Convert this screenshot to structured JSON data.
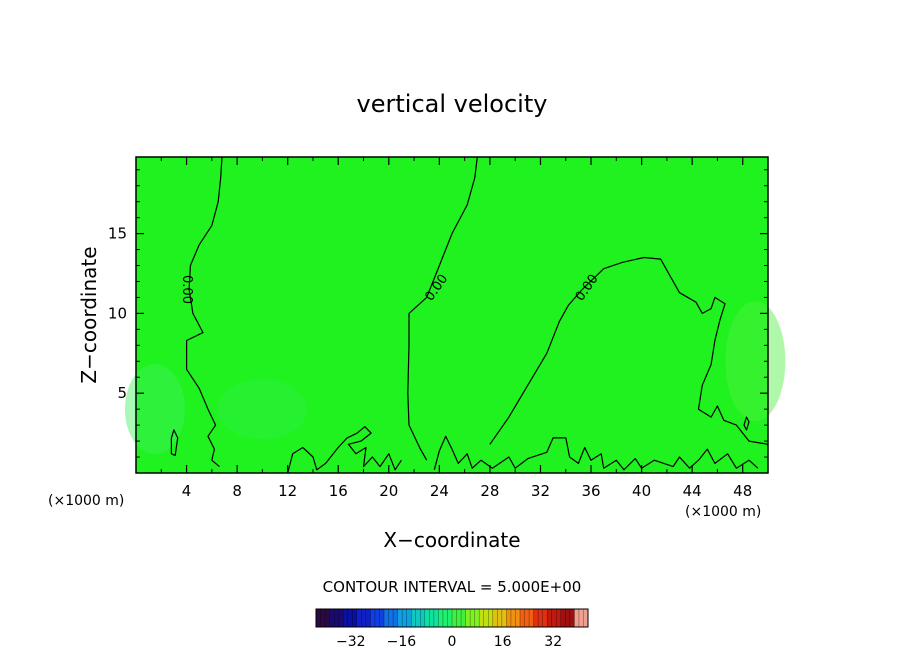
{
  "chart_data": {
    "type": "contour",
    "title": "vertical velocity",
    "xlabel": "X−coordinate",
    "ylabel": "Z−coordinate",
    "x_unit_left": "(×1000 m)",
    "x_unit_right": "(×1000 m)",
    "xlim": [
      0,
      50
    ],
    "ylim": [
      0,
      19.8
    ],
    "x_ticks": [
      4,
      8,
      12,
      16,
      20,
      24,
      28,
      32,
      36,
      40,
      44,
      48
    ],
    "x_tick_labels": [
      "4",
      "8",
      "12",
      "16",
      "20",
      "24",
      "28",
      "32",
      "36",
      "40",
      "44",
      "48"
    ],
    "y_ticks": [
      5,
      10,
      15
    ],
    "y_tick_labels": [
      "5",
      "10",
      "15"
    ],
    "field_color": "#1ff21f",
    "contour_label": "0.00",
    "contour_interval_text": "CONTOUR INTERVAL = 5.000E+00",
    "colorbar": {
      "range": [
        -43,
        43
      ],
      "ticks": [
        -32,
        -16,
        0,
        16,
        32
      ],
      "tick_labels": [
        "−32",
        "−16",
        "0",
        "16",
        "32"
      ],
      "colors": [
        "#2a0a40",
        "#1a0a70",
        "#0a10a0",
        "#1020c8",
        "#1040e0",
        "#1070e8",
        "#10a0e0",
        "#10c8c0",
        "#10e0a0",
        "#20f070",
        "#40f040",
        "#80f020",
        "#c0e010",
        "#e0c010",
        "#f09010",
        "#f06010",
        "#e03010",
        "#c01a10",
        "#a01010",
        "#f0a090"
      ]
    },
    "contours": [
      {
        "name": "contour-line-left",
        "label_x": 4.0,
        "label_y": 11.5,
        "points": [
          [
            6.8,
            19.8
          ],
          [
            6.7,
            18.5
          ],
          [
            6.5,
            17.0
          ],
          [
            6.0,
            15.5
          ],
          [
            5.0,
            14.3
          ],
          [
            4.3,
            13.0
          ],
          [
            4.2,
            11.5
          ],
          [
            4.5,
            10.0
          ],
          [
            5.3,
            8.8
          ],
          [
            4.0,
            8.3
          ],
          [
            4.0,
            6.5
          ],
          [
            5.0,
            5.3
          ],
          [
            5.7,
            4.0
          ],
          [
            6.3,
            3.0
          ],
          [
            5.7,
            2.3
          ],
          [
            6.2,
            1.5
          ],
          [
            6.0,
            0.8
          ],
          [
            6.6,
            0.4
          ]
        ]
      },
      {
        "name": "contour-line-middle",
        "label_x": 23.8,
        "label_y": 11.6,
        "points": [
          [
            27.0,
            19.8
          ],
          [
            26.8,
            18.5
          ],
          [
            26.2,
            16.8
          ],
          [
            25.0,
            15.0
          ],
          [
            24.0,
            13.0
          ],
          [
            23.0,
            11.0
          ],
          [
            21.6,
            10.0
          ],
          [
            21.6,
            8.0
          ],
          [
            21.5,
            5.0
          ],
          [
            21.6,
            3.0
          ],
          [
            22.5,
            1.5
          ],
          [
            23.0,
            0.8
          ]
        ]
      },
      {
        "name": "contour-line-right",
        "label_x": 35.7,
        "label_y": 11.6,
        "points": [
          [
            28.0,
            1.8
          ],
          [
            29.5,
            3.5
          ],
          [
            31.0,
            5.5
          ],
          [
            32.5,
            7.5
          ],
          [
            33.5,
            9.5
          ],
          [
            34.2,
            10.5
          ],
          [
            35.3,
            11.5
          ],
          [
            37.0,
            12.8
          ],
          [
            38.5,
            13.2
          ],
          [
            40.2,
            13.5
          ],
          [
            41.5,
            13.4
          ],
          [
            42.5,
            12.0
          ],
          [
            43.0,
            11.3
          ],
          [
            44.3,
            10.7
          ],
          [
            44.8,
            10.0
          ],
          [
            45.5,
            10.3
          ],
          [
            45.8,
            11.0
          ],
          [
            46.6,
            10.6
          ],
          [
            46.2,
            9.6
          ],
          [
            45.8,
            8.3
          ],
          [
            45.5,
            6.8
          ],
          [
            44.8,
            5.5
          ],
          [
            44.5,
            4.0
          ],
          [
            45.5,
            3.5
          ],
          [
            46.0,
            4.2
          ],
          [
            46.5,
            3.3
          ],
          [
            47.5,
            3.0
          ],
          [
            48.5,
            2.0
          ],
          [
            50.0,
            1.8
          ]
        ]
      },
      {
        "name": "contour-loop-small-left",
        "closed": true,
        "points": [
          [
            3.0,
            2.7
          ],
          [
            3.3,
            2.2
          ],
          [
            3.1,
            1.1
          ],
          [
            2.8,
            1.2
          ],
          [
            2.8,
            2.2
          ]
        ]
      },
      {
        "name": "contour-loop-small-right",
        "closed": true,
        "points": [
          [
            48.3,
            3.5
          ],
          [
            48.5,
            3.2
          ],
          [
            48.3,
            2.7
          ],
          [
            48.1,
            3.0
          ]
        ]
      },
      {
        "name": "contour-bottom-wiggles",
        "points": [
          [
            12.0,
            0.0
          ],
          [
            12.4,
            1.2
          ],
          [
            13.2,
            1.6
          ],
          [
            14.0,
            1.0
          ],
          [
            14.3,
            0.2
          ],
          [
            15.0,
            0.6
          ],
          [
            16.0,
            1.6
          ],
          [
            16.7,
            2.2
          ],
          [
            17.5,
            2.5
          ],
          [
            18.1,
            2.9
          ],
          [
            18.6,
            2.5
          ],
          [
            17.8,
            2.0
          ],
          [
            16.8,
            1.8
          ],
          [
            17.4,
            1.2
          ],
          [
            18.2,
            1.6
          ],
          [
            18.0,
            0.4
          ],
          [
            18.7,
            1.0
          ],
          [
            19.3,
            0.4
          ],
          [
            20.0,
            1.2
          ],
          [
            20.5,
            0.2
          ],
          [
            21.0,
            0.8
          ]
        ]
      },
      {
        "name": "contour-bottom-wiggles-right",
        "points": [
          [
            23.6,
            0.2
          ],
          [
            24.0,
            1.4
          ],
          [
            24.5,
            2.3
          ],
          [
            25.0,
            1.5
          ],
          [
            25.5,
            0.6
          ],
          [
            26.2,
            1.2
          ],
          [
            26.6,
            0.3
          ],
          [
            27.3,
            0.8
          ],
          [
            28.2,
            0.3
          ],
          [
            29.5,
            1.0
          ],
          [
            30.0,
            0.3
          ],
          [
            31.0,
            0.9
          ],
          [
            32.5,
            1.3
          ],
          [
            33.0,
            2.2
          ],
          [
            34.0,
            2.2
          ],
          [
            34.3,
            1.0
          ],
          [
            35.0,
            0.6
          ],
          [
            35.5,
            1.6
          ],
          [
            36.0,
            0.8
          ],
          [
            36.8,
            1.2
          ],
          [
            37.0,
            0.3
          ],
          [
            38.0,
            0.8
          ],
          [
            38.6,
            0.2
          ],
          [
            39.5,
            0.9
          ],
          [
            40.0,
            0.3
          ],
          [
            41.0,
            0.8
          ],
          [
            42.5,
            0.4
          ],
          [
            43.0,
            1.0
          ],
          [
            43.8,
            0.3
          ],
          [
            44.5,
            0.8
          ],
          [
            45.2,
            1.5
          ],
          [
            45.8,
            0.6
          ],
          [
            46.8,
            1.2
          ],
          [
            47.5,
            0.3
          ],
          [
            48.5,
            0.8
          ],
          [
            49.2,
            0.3
          ]
        ]
      }
    ]
  }
}
